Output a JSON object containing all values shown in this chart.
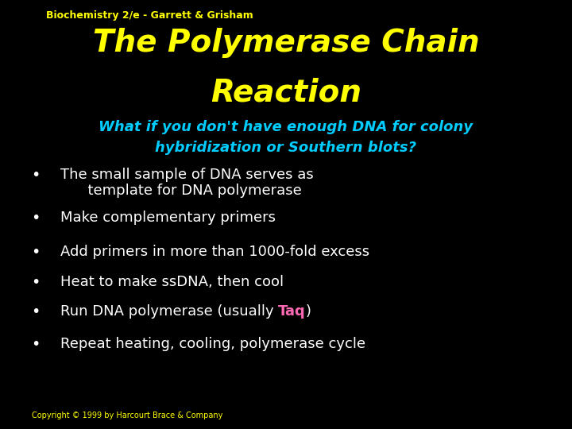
{
  "background_color": "#000000",
  "header_text": "Biochemistry 2/e - Garrett & Grisham",
  "header_color": "#ffff00",
  "header_fontsize": 9,
  "title_line1": "The Polymerase Chain",
  "title_line2": "Reaction",
  "title_color": "#ffff00",
  "title_fontsize": 28,
  "subtitle_line1": "What if you don't have enough DNA for colony",
  "subtitle_line2": "hybridization or Southern blots?",
  "subtitle_color": "#00ccff",
  "subtitle_fontsize": 13,
  "bullet_color": "#ffffff",
  "bullet_fontsize": 13,
  "bullets": [
    {
      "text": "The small sample of DNA serves as\n      template for DNA polymerase",
      "parts": null
    },
    {
      "text": "Make complementary primers",
      "parts": null
    },
    {
      "text": "Add primers in more than 1000-fold excess",
      "parts": null
    },
    {
      "text": "Heat to make ssDNA, then cool",
      "parts": null
    },
    {
      "text": "Run DNA polymerase (usually Taq)",
      "parts": [
        "Run DNA polymerase (usually ",
        "Taq",
        ")"
      ]
    },
    {
      "text": "Repeat heating, cooling, polymerase cycle",
      "parts": null
    }
  ],
  "taq_color": "#ff69b4",
  "copyright_text": "Copyright © 1999 by Harcourt Brace & Company",
  "copyright_color": "#ffff00",
  "copyright_fontsize": 7
}
